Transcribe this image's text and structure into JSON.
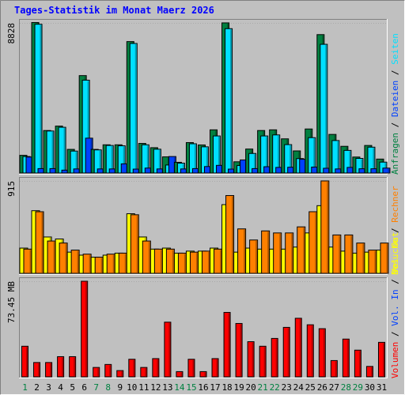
{
  "chart_data": {
    "type": "bar",
    "title": "Tages-Statistik im Monat Maerz 2026",
    "categories": [
      "1",
      "2",
      "3",
      "4",
      "5",
      "6",
      "7",
      "8",
      "9",
      "10",
      "11",
      "12",
      "13",
      "14",
      "15",
      "16",
      "17",
      "18",
      "19",
      "20",
      "21",
      "22",
      "23",
      "24",
      "25",
      "26",
      "27",
      "28",
      "29",
      "30",
      "31"
    ],
    "weekend_days": [
      "1",
      "7",
      "8",
      "14",
      "15",
      "21",
      "22",
      "28",
      "29"
    ],
    "panels": [
      {
        "id": "requests",
        "max_label": "8828",
        "ymax": 8828,
        "legend": [
          {
            "text": "Anfragen",
            "color": "#008040"
          },
          {
            "text": "Dateien",
            "color": "#0040ff"
          },
          {
            "text": "Seiten",
            "color": "#00e0ff"
          }
        ],
        "series": [
          {
            "name": "Anfragen",
            "color": "#008040",
            "values": [
              1040,
              8850,
              2500,
              2760,
              1390,
              5730,
              1390,
              1660,
              1660,
              7730,
              1740,
              1490,
              950,
              630,
              1790,
              1650,
              2540,
              8830,
              660,
              1410,
              2500,
              2540,
              2010,
              1300,
              2590,
              8140,
              2270,
              1570,
              940,
              1620,
              820
            ]
          },
          {
            "name": "Seiten",
            "color": "#00e0ff",
            "values": [
              970,
              8750,
              2470,
              2690,
              1290,
              5460,
              1360,
              1620,
              1600,
              7620,
              1660,
              1400,
              470,
              580,
              1720,
              1540,
              2180,
              8490,
              440,
              1150,
              2180,
              2240,
              1670,
              850,
              2080,
              7570,
              1910,
              1330,
              860,
              1520,
              640
            ]
          },
          {
            "name": "Dateien",
            "color": "#0040ff",
            "values": [
              940,
              260,
              260,
              170,
              240,
              2050,
              240,
              240,
              540,
              230,
              290,
              240,
              970,
              240,
              260,
              380,
              450,
              230,
              770,
              260,
              370,
              330,
              340,
              810,
              350,
              280,
              240,
              330,
              250,
              250,
              290
            ]
          }
        ]
      },
      {
        "id": "visits",
        "max_label": "915",
        "ymax": 915,
        "legend": [
          {
            "text": "Besuche",
            "color": "#ffff00"
          },
          {
            "text": "Rechner",
            "color": "#ff8000"
          }
        ],
        "series": [
          {
            "name": "Besuche",
            "color": "#ffff00",
            "values": [
              250,
              620,
              360,
              340,
              210,
              180,
              160,
              180,
              200,
              590,
              360,
              240,
              250,
              200,
              220,
              220,
              250,
              680,
              210,
              250,
              240,
              240,
              240,
              260,
              400,
              670,
              260,
              220,
              200,
              210,
              230
            ]
          },
          {
            "name": "Rechner",
            "color": "#ff8000",
            "values": [
              240,
              610,
              320,
              300,
              230,
              190,
              160,
              190,
              200,
              580,
              320,
              240,
              240,
              200,
              210,
              220,
              240,
              770,
              440,
              330,
              420,
              400,
              400,
              460,
              610,
              915,
              380,
              380,
              300,
              230,
              300
            ]
          }
        ]
      },
      {
        "id": "volume",
        "max_label": "73.45 MB",
        "ymax": 73.45,
        "legend": [
          {
            "text": "Volumen",
            "color": "#ff0000"
          },
          {
            "text": "Vol. In",
            "color": "#0040ff"
          },
          {
            "text": "Vol. Out",
            "color": "#ffff00"
          }
        ],
        "series": [
          {
            "name": "Volumen",
            "color": "#ff0000",
            "values": [
              23.5,
              11.0,
              11.0,
              15.5,
              15.5,
              73.45,
              7.2,
              9.5,
              4.8,
              13.5,
              7.2,
              14.0,
              42.0,
              4.0,
              13.5,
              4.0,
              14.0,
              49.5,
              41.0,
              27.0,
              23.5,
              29.5,
              38.0,
              45.0,
              40.0,
              37.0,
              12.5,
              29.0,
              20.5,
              8.0,
              26.5
            ]
          }
        ]
      }
    ],
    "legend_separator": " / "
  }
}
